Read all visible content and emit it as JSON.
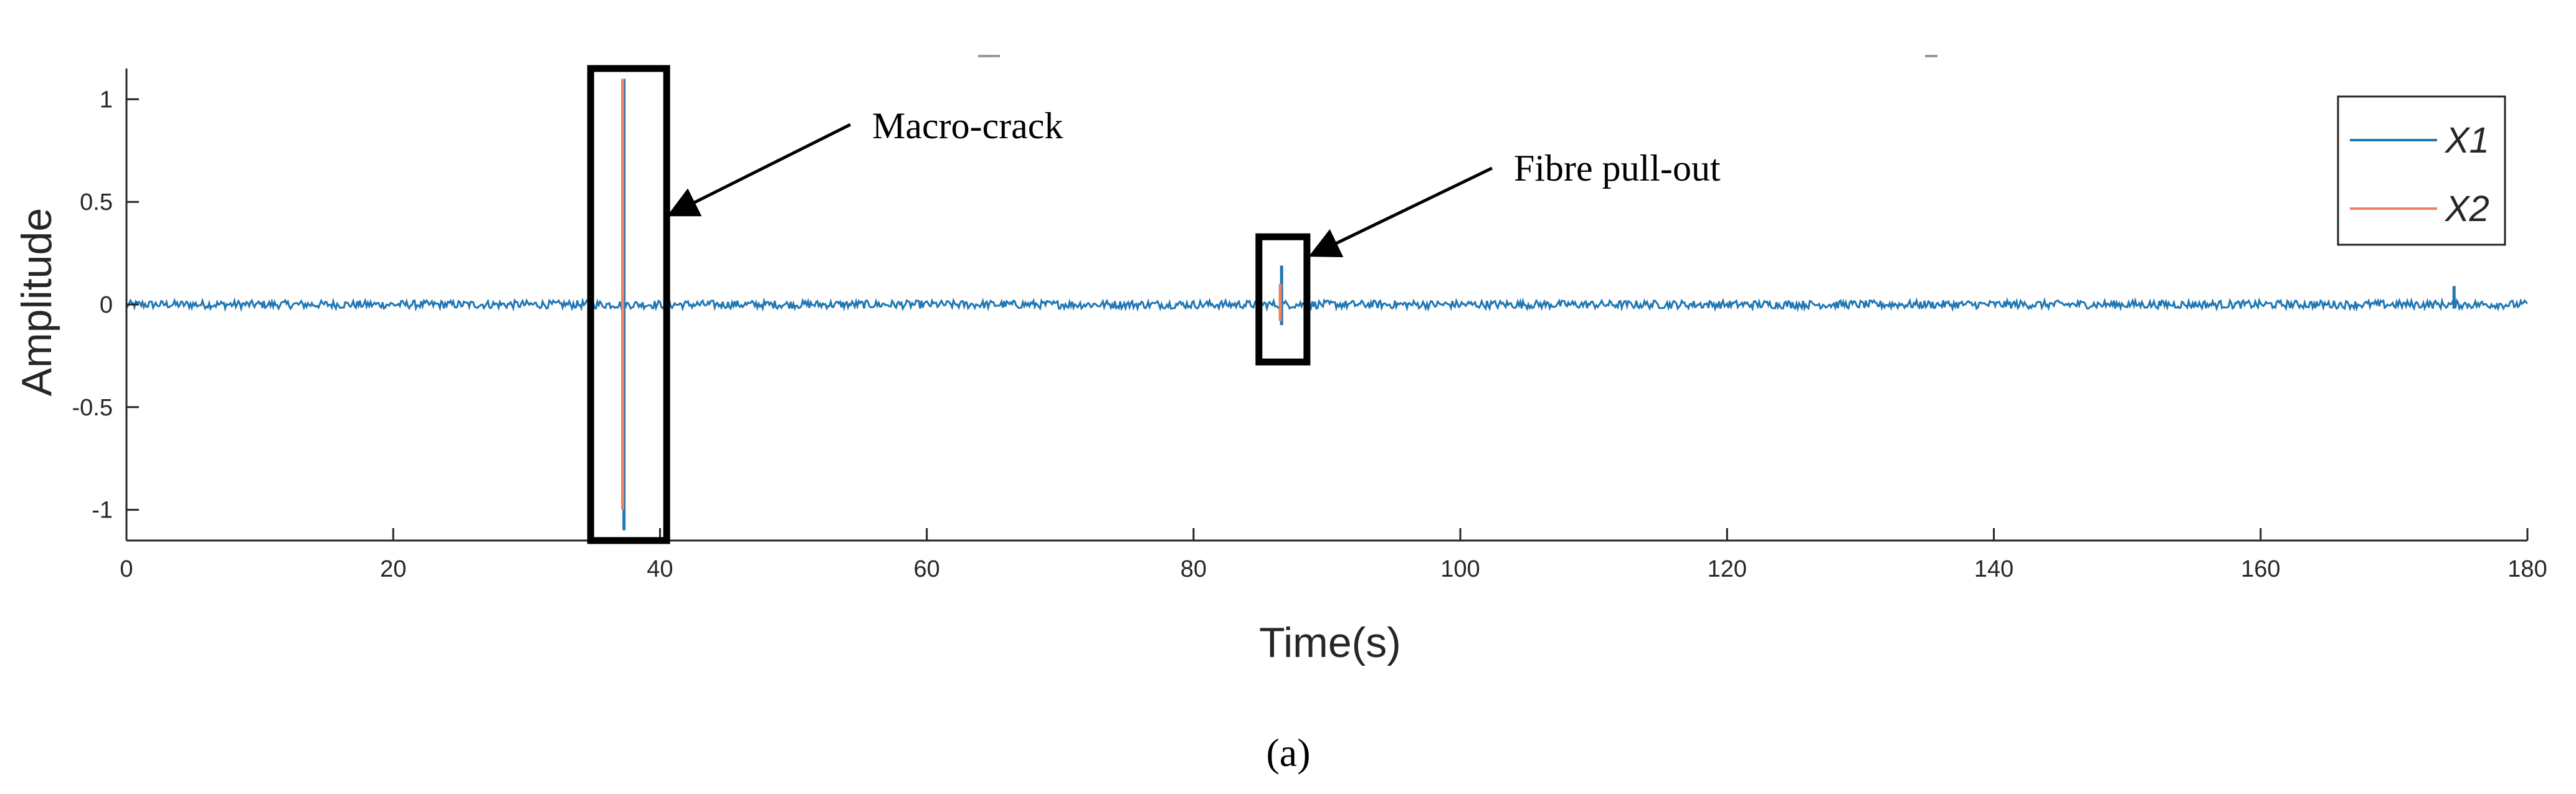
{
  "chart_data": {
    "type": "line",
    "xlabel": "Time(s)",
    "ylabel": "Amplitude",
    "xlim": [
      0,
      180
    ],
    "ylim": [
      -1.15,
      1.15
    ],
    "x_ticks": [
      0,
      20,
      40,
      60,
      80,
      100,
      120,
      140,
      160,
      180
    ],
    "y_ticks": [
      1,
      0.5,
      0,
      -0.5,
      -1
    ],
    "y_tick_labels": [
      "1",
      "0.5",
      "0",
      "-0.5",
      "-1"
    ],
    "legend_placement": "top-right",
    "grid": false,
    "series": [
      {
        "name": "X1",
        "color": "#1f77b4",
        "baseline": 0,
        "noise_amplitude": 0.02,
        "spikes": [
          {
            "x": 37.3,
            "min": -1.1,
            "max": 1.1
          },
          {
            "x": 86.6,
            "min": -0.1,
            "max": 0.19
          },
          {
            "x": 174.5,
            "min": -0.02,
            "max": 0.09
          }
        ]
      },
      {
        "name": "X2",
        "color": "#f08060",
        "baseline": 0,
        "noise_amplitude": 0.0,
        "spikes": [
          {
            "x": 37.2,
            "min": -1.0,
            "max": 1.1
          },
          {
            "x": 86.5,
            "min": -0.08,
            "max": 0.1
          }
        ]
      }
    ],
    "annotations": [
      {
        "text": "Macro-crack",
        "box_x": [
          34.8,
          40.5
        ],
        "box_y": [
          -1.15,
          1.15
        ]
      },
      {
        "text": "Fibre pull-out",
        "box_x": [
          84.9,
          88.5
        ],
        "box_y": [
          -0.28,
          0.33
        ]
      }
    ]
  },
  "caption": "(a)"
}
